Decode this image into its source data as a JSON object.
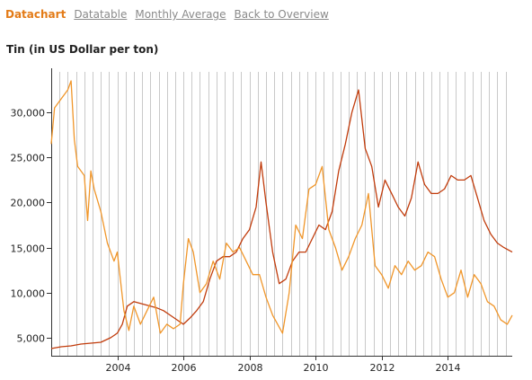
{
  "nav": {
    "tabs": [
      {
        "label": "Datachart",
        "active": true
      },
      {
        "label": "Datatable",
        "active": false
      },
      {
        "label": "Monthly Average",
        "active": false
      },
      {
        "label": "Back to Overview",
        "active": false
      }
    ]
  },
  "colors": {
    "active_tab": "#e37b17",
    "inactive_tab": "#8a8a8a",
    "series_a": "#c13c0c",
    "series_b": "#f0962a",
    "grid": "#c9c9c9"
  },
  "chart_data": {
    "type": "line",
    "title": "Tin (in US Dollar per ton)",
    "xlabel": "",
    "ylabel": "",
    "xlim": [
      2002.0,
      2015.95
    ],
    "ylim": [
      3000,
      34500
    ],
    "grid": "vertical",
    "x_ticks": [
      2004,
      2006,
      2008,
      2010,
      2012,
      2014
    ],
    "x_tick_labels": [
      "2004",
      "2006",
      "2008",
      "2010",
      "2012",
      "2014"
    ],
    "y_ticks": [
      5000,
      10000,
      15000,
      20000,
      25000,
      30000
    ],
    "y_tick_labels": [
      "5,000",
      "10,000",
      "15,000",
      "20,000",
      "25,000",
      "30,000"
    ],
    "series": [
      {
        "color": "#c13c0c",
        "x": [
          2002.0,
          2002.3,
          2002.6,
          2002.9,
          2003.2,
          2003.5,
          2003.8,
          2004.0,
          2004.15,
          2004.3,
          2004.5,
          2004.7,
          2005.0,
          2005.2,
          2005.4,
          2005.6,
          2005.8,
          2006.0,
          2006.2,
          2006.4,
          2006.6,
          2006.8,
          2007.0,
          2007.2,
          2007.4,
          2007.6,
          2007.8,
          2008.0,
          2008.2,
          2008.35,
          2008.5,
          2008.7,
          2008.9,
          2009.1,
          2009.3,
          2009.5,
          2009.7,
          2009.9,
          2010.1,
          2010.3,
          2010.5,
          2010.7,
          2010.9,
          2011.1,
          2011.3,
          2011.5,
          2011.7,
          2011.9,
          2012.1,
          2012.3,
          2012.5,
          2012.7,
          2012.9,
          2013.1,
          2013.3,
          2013.5,
          2013.7,
          2013.9,
          2014.1,
          2014.3,
          2014.5,
          2014.7,
          2014.9,
          2015.1,
          2015.3,
          2015.5,
          2015.7,
          2015.95
        ],
        "values": [
          3800,
          4000,
          4100,
          4300,
          4400,
          4500,
          5000,
          5500,
          6500,
          8500,
          9000,
          8800,
          8500,
          8300,
          8000,
          7500,
          7000,
          6500,
          7200,
          8000,
          9000,
          11500,
          13500,
          14000,
          14000,
          14500,
          16000,
          17000,
          19500,
          24500,
          20000,
          14500,
          11000,
          11500,
          13500,
          14500,
          14500,
          16000,
          17500,
          17000,
          19000,
          23500,
          26500,
          30000,
          32500,
          26000,
          24000,
          19500,
          22500,
          21000,
          19500,
          18500,
          20500,
          24500,
          22000,
          21000,
          21000,
          21500,
          23000,
          22500,
          22500,
          23000,
          20500,
          18000,
          16500,
          15500,
          15000,
          14500
        ]
      },
      {
        "color": "#f0962a",
        "x": [
          2002.0,
          2002.1,
          2002.3,
          2002.5,
          2002.6,
          2002.7,
          2002.8,
          2003.0,
          2003.1,
          2003.2,
          2003.3,
          2003.5,
          2003.7,
          2003.9,
          2004.0,
          2004.2,
          2004.35,
          2004.5,
          2004.7,
          2004.9,
          2005.1,
          2005.3,
          2005.5,
          2005.7,
          2005.9,
          2006.0,
          2006.15,
          2006.3,
          2006.5,
          2006.7,
          2006.9,
          2007.1,
          2007.3,
          2007.5,
          2007.7,
          2007.9,
          2008.1,
          2008.3,
          2008.5,
          2008.7,
          2008.85,
          2009.0,
          2009.2,
          2009.4,
          2009.6,
          2009.8,
          2010.0,
          2010.2,
          2010.4,
          2010.6,
          2010.8,
          2011.0,
          2011.2,
          2011.4,
          2011.6,
          2011.8,
          2012.0,
          2012.2,
          2012.4,
          2012.6,
          2012.8,
          2013.0,
          2013.2,
          2013.4,
          2013.6,
          2013.8,
          2014.0,
          2014.2,
          2014.4,
          2014.6,
          2014.8,
          2015.0,
          2015.2,
          2015.4,
          2015.6,
          2015.8,
          2015.95
        ],
        "values": [
          26500,
          30500,
          31500,
          32500,
          33500,
          27000,
          24000,
          23000,
          18000,
          23500,
          21500,
          19000,
          15500,
          13500,
          14500,
          8000,
          5800,
          8500,
          6500,
          8000,
          9500,
          5500,
          6500,
          6000,
          6500,
          11000,
          16000,
          14500,
          10000,
          11000,
          13500,
          11500,
          15500,
          14500,
          15000,
          13500,
          12000,
          12000,
          9500,
          7500,
          6500,
          5500,
          10000,
          17500,
          16000,
          21500,
          22000,
          24000,
          17000,
          15000,
          12500,
          14000,
          16000,
          17500,
          21000,
          13000,
          12000,
          10500,
          13000,
          12000,
          13500,
          12500,
          13000,
          14500,
          14000,
          11500,
          9500,
          10000,
          12500,
          9500,
          12000,
          11000,
          9000,
          8500,
          7000,
          6500,
          7500
        ]
      }
    ]
  }
}
